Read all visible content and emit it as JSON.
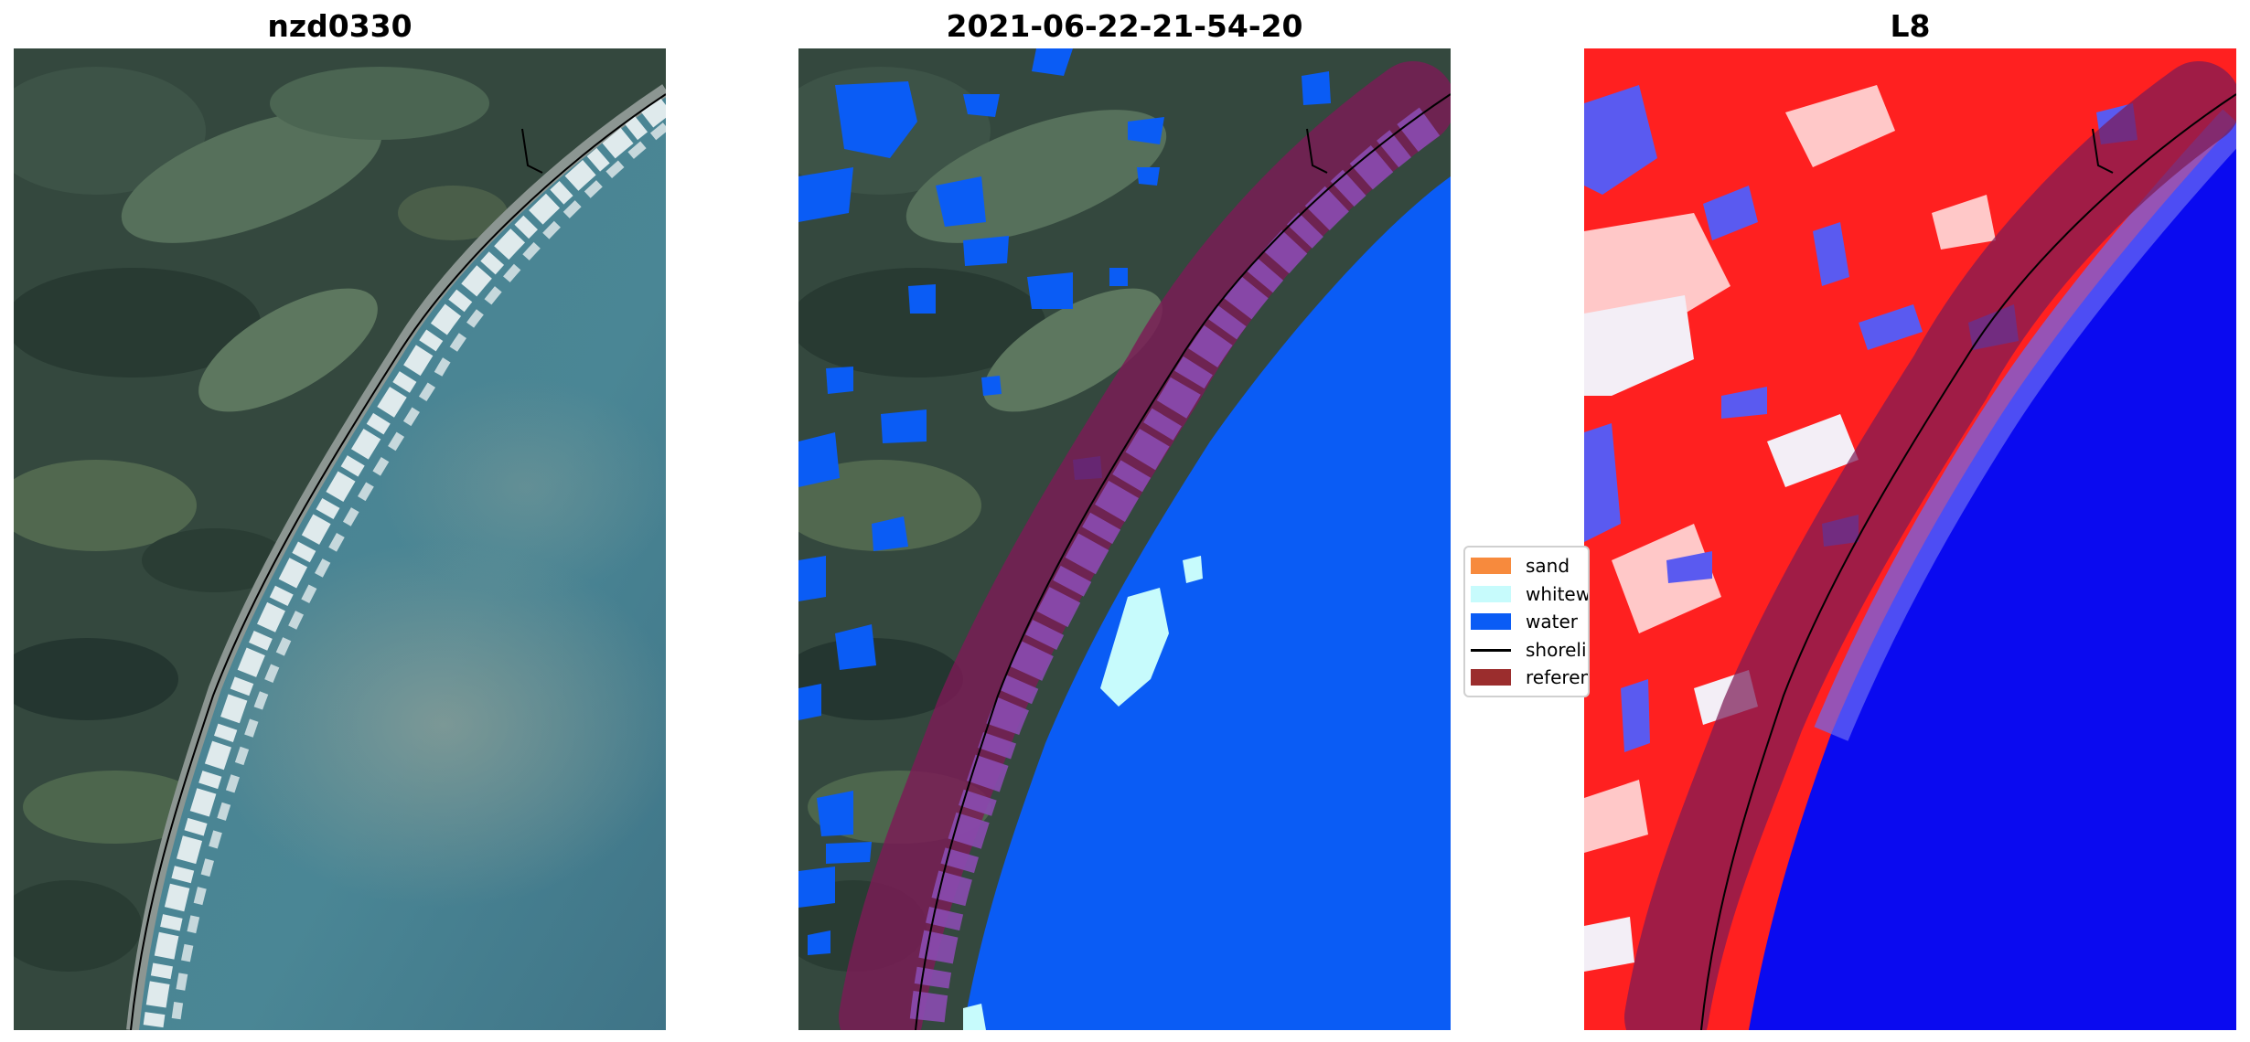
{
  "panels": [
    {
      "title": "nzd0330",
      "kind": "rgb-image"
    },
    {
      "title": "2021-06-22-21-54-20",
      "kind": "classified-image"
    },
    {
      "title": "L8",
      "kind": "index-image"
    }
  ],
  "legend": {
    "items": [
      {
        "label": "sand",
        "color": "#f78a3d",
        "type": "patch"
      },
      {
        "label": "whitewater",
        "color": "#c7fbfc",
        "type": "patch"
      },
      {
        "label": "water",
        "color": "#0a5cf5",
        "type": "patch"
      },
      {
        "label": "shoreline",
        "color": "#000000",
        "type": "line"
      },
      {
        "label": "reference shoreline buffer",
        "color": "#9b2d2d",
        "type": "patch"
      }
    ]
  },
  "colors": {
    "land_dark": "#2c3f37",
    "land_light": "#5f7560",
    "sea": "#3d7a8a",
    "surf": "#e6f0f2",
    "class_water": "#0a5cf5",
    "class_whitewater": "#c7fbfc",
    "buffer": "#7b1b55",
    "index_positive": "#ff0000",
    "index_negative": "#0000ff"
  }
}
